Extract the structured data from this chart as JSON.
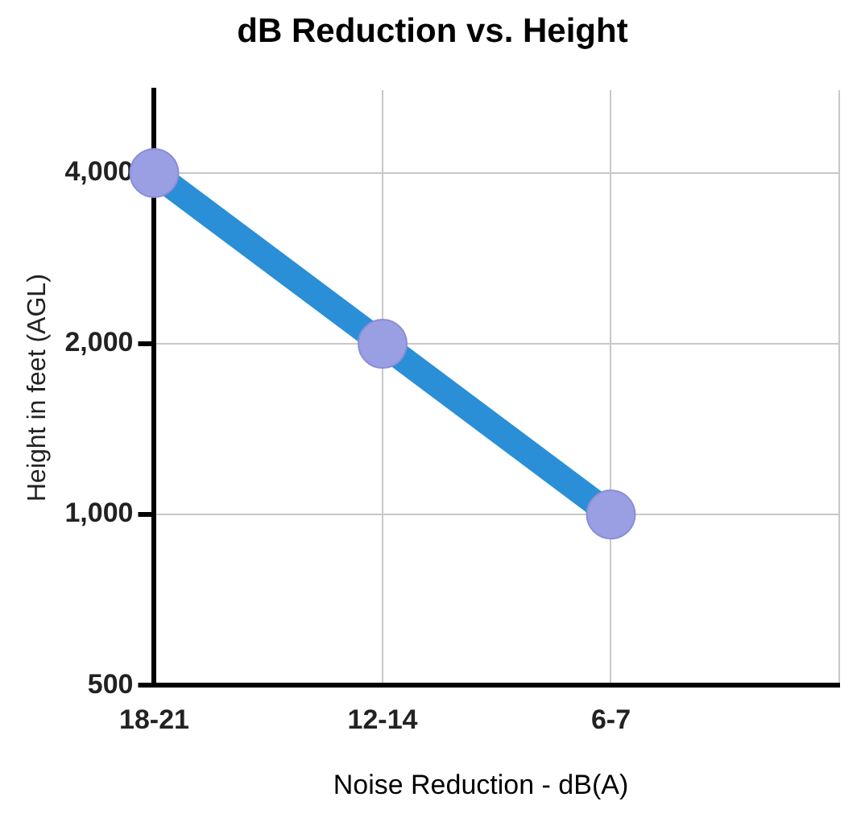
{
  "chart_data": {
    "type": "line",
    "title": "dB Reduction vs. Height",
    "xlabel": "Noise Reduction - dB(A)",
    "ylabel": "Height in feet (AGL)",
    "categories": [
      "18-21",
      "12-14",
      "6-7",
      null
    ],
    "series": [
      {
        "color": "#2a8fd6",
        "values": [
          4000,
          2000,
          1000,
          null
        ]
      }
    ],
    "log": true,
    "ylim": [
      500,
      5600
    ],
    "yticks": [
      {
        "value": 500,
        "label": "500"
      },
      {
        "value": 1000,
        "label": "1,000"
      },
      {
        "value": 2000,
        "label": "2,000"
      },
      {
        "value": 4000,
        "label": "4,000"
      }
    ],
    "grid": true,
    "marker": "circle",
    "line_style": "solid",
    "legend": false
  }
}
